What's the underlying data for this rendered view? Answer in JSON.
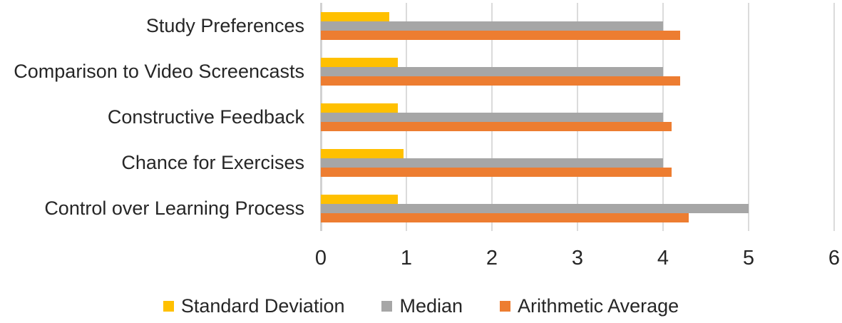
{
  "chart_data": {
    "type": "bar",
    "orientation": "horizontal",
    "title": "",
    "xlabel": "",
    "ylabel": "",
    "categories": [
      "Study Preferences",
      "Comparison to Video Screencasts",
      "Constructive Feedback",
      "Chance for Exercises",
      "Control over Learning Process"
    ],
    "series": [
      {
        "name": "Standard Deviation",
        "color": "#FFC000",
        "values": [
          0.8,
          0.9,
          0.9,
          0.97,
          0.9
        ]
      },
      {
        "name": "Median",
        "color": "#A6A6A6",
        "values": [
          4,
          4,
          4,
          4,
          5
        ]
      },
      {
        "name": "Arithmetic Average",
        "color": "#ED7D31",
        "values": [
          4.2,
          4.2,
          4.1,
          4.1,
          4.3
        ]
      }
    ],
    "xlim": [
      0,
      6
    ],
    "x_ticks": [
      0,
      1,
      2,
      3,
      4,
      5,
      6
    ],
    "grid": true,
    "legend_position": "bottom",
    "gridline_color": "#DBDBDB",
    "axis_line_color": "#D2D2D2",
    "text_color": "#262626",
    "background": "#FFFFFF"
  }
}
